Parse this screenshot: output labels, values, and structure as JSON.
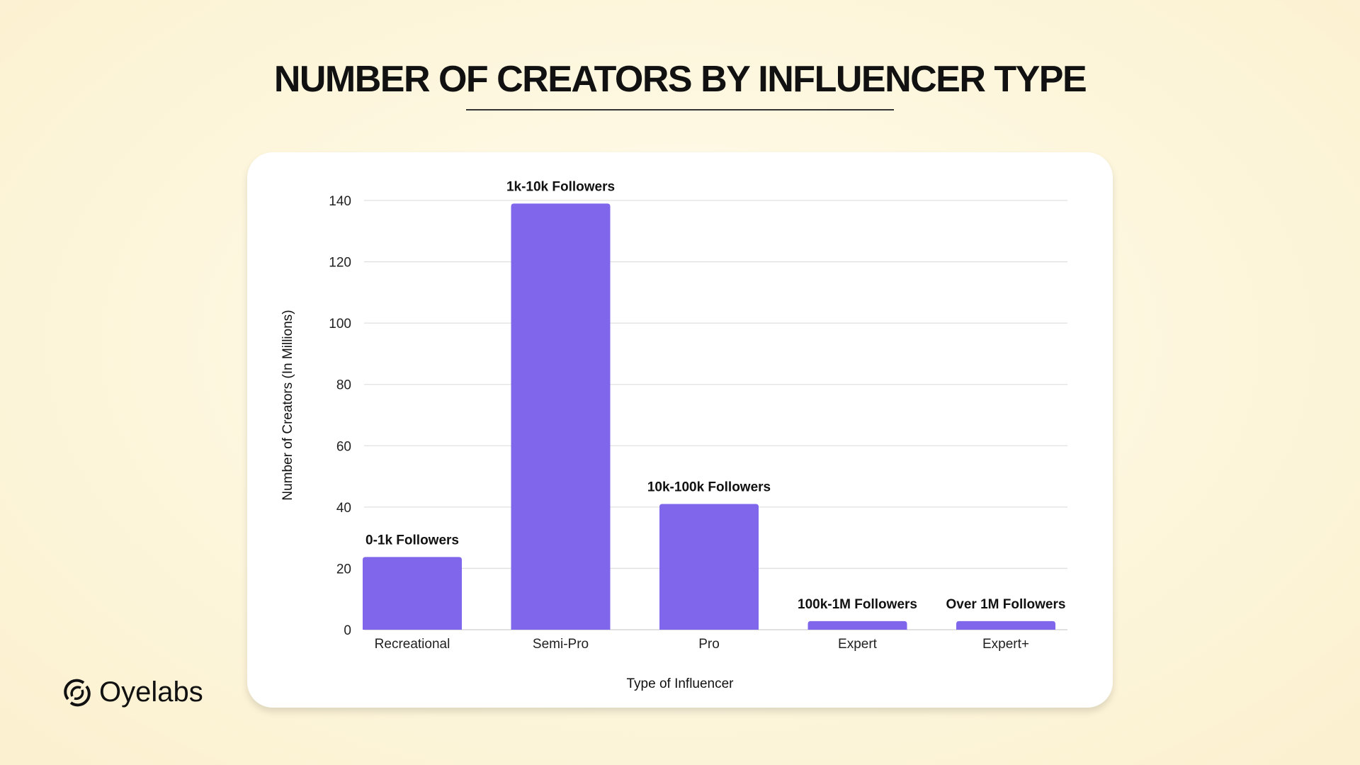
{
  "title": "NUMBER OF CREATORS BY INFLUENCER TYPE",
  "brand": {
    "name": "Oyelabs"
  },
  "chart_data": {
    "type": "bar",
    "title": "NUMBER OF CREATORS BY INFLUENCER TYPE",
    "xlabel": "Type of Influencer",
    "ylabel": "Number of Creators (In Millions)",
    "categories": [
      "Recreational",
      "Semi-Pro",
      "Pro",
      "Expert",
      "Expert+"
    ],
    "values": [
      23.7,
      139,
      41,
      2.8,
      2.8
    ],
    "data_labels": [
      "0-1k Followers",
      "1k-10k Followers",
      "10k-100k Followers",
      "100k-1M Followers",
      "Over 1M Followers"
    ],
    "ylim": [
      0,
      140
    ],
    "yticks": [
      0,
      20,
      40,
      60,
      80,
      100,
      120,
      140
    ],
    "grid": true,
    "bar_color": "#7f66eb"
  }
}
